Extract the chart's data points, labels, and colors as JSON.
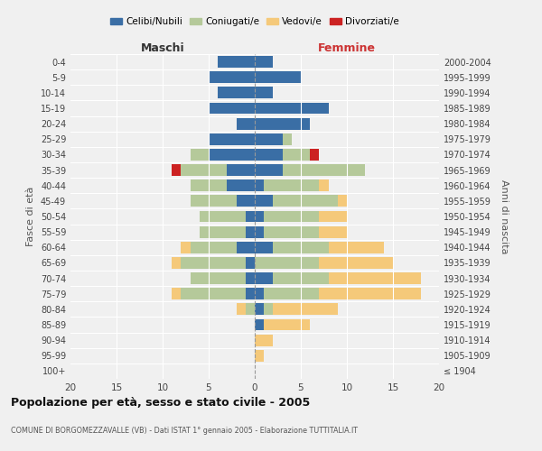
{
  "age_groups": [
    "100+",
    "95-99",
    "90-94",
    "85-89",
    "80-84",
    "75-79",
    "70-74",
    "65-69",
    "60-64",
    "55-59",
    "50-54",
    "45-49",
    "40-44",
    "35-39",
    "30-34",
    "25-29",
    "20-24",
    "15-19",
    "10-14",
    "5-9",
    "0-4"
  ],
  "birth_years": [
    "≤ 1904",
    "1905-1909",
    "1910-1914",
    "1915-1919",
    "1920-1924",
    "1925-1929",
    "1930-1934",
    "1935-1939",
    "1940-1944",
    "1945-1949",
    "1950-1954",
    "1955-1959",
    "1960-1964",
    "1965-1969",
    "1970-1974",
    "1975-1979",
    "1980-1984",
    "1985-1989",
    "1990-1994",
    "1995-1999",
    "2000-2004"
  ],
  "colors": {
    "celibi": "#3a6ea5",
    "coniugati": "#b5c99a",
    "vedovi": "#f5c97a",
    "divorziati": "#cc2222"
  },
  "maschi": {
    "celibi": [
      0,
      0,
      0,
      0,
      0,
      1,
      1,
      1,
      2,
      1,
      1,
      2,
      3,
      3,
      5,
      5,
      2,
      5,
      4,
      5,
      4
    ],
    "coniugati": [
      0,
      0,
      0,
      0,
      1,
      7,
      6,
      7,
      5,
      5,
      5,
      5,
      4,
      5,
      2,
      0,
      0,
      0,
      0,
      0,
      0
    ],
    "vedovi": [
      0,
      0,
      0,
      0,
      1,
      1,
      0,
      1,
      1,
      0,
      0,
      0,
      0,
      0,
      0,
      0,
      0,
      0,
      0,
      0,
      0
    ],
    "divorziati": [
      0,
      0,
      0,
      0,
      0,
      0,
      0,
      0,
      0,
      0,
      0,
      0,
      0,
      1,
      0,
      0,
      0,
      0,
      0,
      0,
      0
    ]
  },
  "femmine": {
    "celibi": [
      0,
      0,
      0,
      1,
      1,
      1,
      2,
      0,
      2,
      1,
      1,
      2,
      1,
      3,
      3,
      3,
      6,
      8,
      2,
      5,
      2
    ],
    "coniugati": [
      0,
      0,
      0,
      0,
      1,
      6,
      6,
      7,
      6,
      6,
      6,
      7,
      6,
      9,
      3,
      1,
      0,
      0,
      0,
      0,
      0
    ],
    "vedovi": [
      0,
      1,
      2,
      5,
      7,
      11,
      10,
      8,
      6,
      3,
      3,
      1,
      1,
      0,
      0,
      0,
      0,
      0,
      0,
      0,
      0
    ],
    "divorziati": [
      0,
      0,
      0,
      0,
      0,
      0,
      0,
      0,
      0,
      0,
      0,
      0,
      0,
      0,
      1,
      0,
      0,
      0,
      0,
      0,
      0
    ]
  },
  "title": "Popolazione per età, sesso e stato civile - 2005",
  "subtitle": "COMUNE DI BORGOMEZZAVALLE (VB) - Dati ISTAT 1° gennaio 2005 - Elaborazione TUTTITALIA.IT",
  "ylabel_left": "Fasce di età",
  "ylabel_right": "Anni di nascita",
  "xlabel_left": "Maschi",
  "xlabel_right": "Femmine",
  "xlim": 20,
  "legend_labels": [
    "Celibi/Nubili",
    "Coniugati/e",
    "Vedovi/e",
    "Divorziati/e"
  ],
  "bg_color": "#f0f0f0"
}
